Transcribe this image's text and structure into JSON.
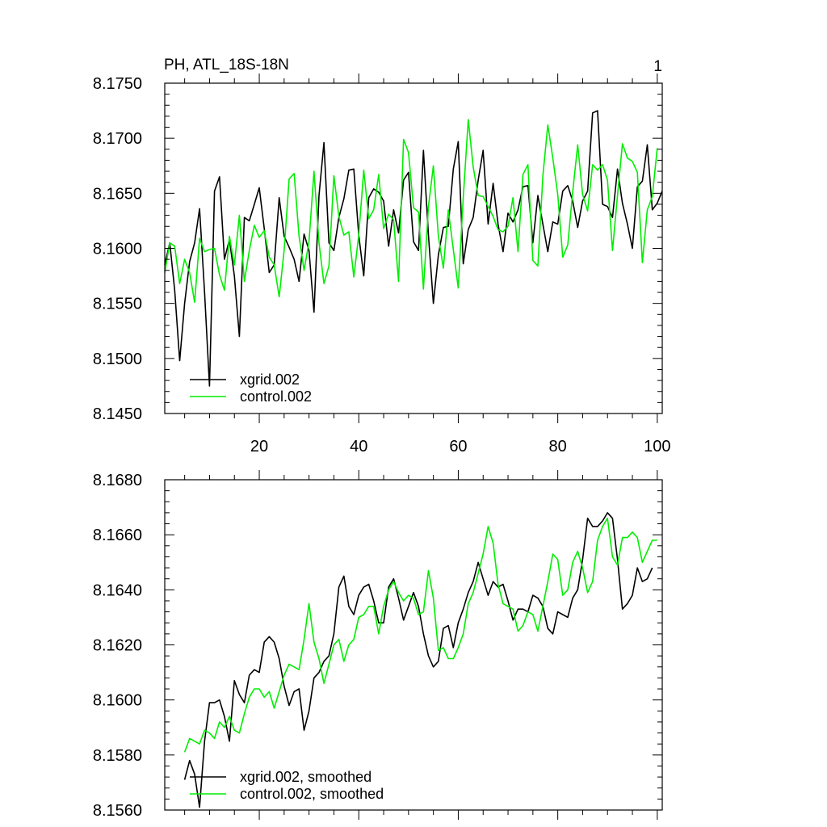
{
  "chart_data": [
    {
      "type": "line",
      "title": "PH, ATL_18S-18N",
      "corner_label": "1",
      "xlim": [
        1,
        101
      ],
      "ylim": [
        8.145,
        8.175
      ],
      "xticks": [
        20,
        40,
        60,
        80,
        100
      ],
      "xtick_labels": [
        "20",
        "40",
        "60",
        "80",
        "100"
      ],
      "yticks": [
        8.145,
        8.15,
        8.155,
        8.16,
        8.165,
        8.17,
        8.175
      ],
      "ytick_labels": [
        "8.1450",
        "8.1500",
        "8.1550",
        "8.1600",
        "8.1650",
        "8.1700",
        "8.1750"
      ],
      "legend_position": "bottom-left",
      "series": [
        {
          "name": "xgrid.002",
          "color": "#000000",
          "values": [
            8.1585,
            8.1605,
            8.1562,
            8.1498,
            8.155,
            8.1588,
            8.1605,
            8.1636,
            8.156,
            8.1475,
            8.1652,
            8.1665,
            8.159,
            8.1608,
            8.1575,
            8.152,
            8.1628,
            8.1625,
            8.164,
            8.1655,
            8.1618,
            8.1578,
            8.1585,
            8.1646,
            8.1611,
            8.1601,
            8.159,
            8.157,
            8.1613,
            8.1598,
            8.1542,
            8.1648,
            8.1696,
            8.1605,
            8.1598,
            8.1628,
            8.1645,
            8.1671,
            8.1672,
            8.1612,
            8.1575,
            8.1646,
            8.1654,
            8.1651,
            8.1643,
            8.1602,
            8.1635,
            8.1614,
            8.1662,
            8.1669,
            8.1606,
            8.1598,
            8.1689,
            8.1612,
            8.155,
            8.1594,
            8.1619,
            8.162,
            8.1672,
            8.1697,
            8.1586,
            8.1617,
            8.1628,
            8.1662,
            8.1689,
            8.1622,
            8.1659,
            8.1622,
            8.1597,
            8.1632,
            8.1624,
            8.1635,
            8.1656,
            8.1657,
            8.1605,
            8.1648,
            8.1622,
            8.1597,
            8.1624,
            8.1622,
            8.1652,
            8.1657,
            8.1643,
            8.1619,
            8.1643,
            8.1652,
            8.1723,
            8.1725,
            8.164,
            8.1638,
            8.1628,
            8.1672,
            8.1641,
            8.1622,
            8.16,
            8.1656,
            8.1661,
            8.1694,
            8.1635,
            8.1641,
            8.1652
          ]
        },
        {
          "name": "control.002",
          "color": "#00ee00",
          "values": [
            8.1578,
            8.1605,
            8.1602,
            8.1568,
            8.159,
            8.1578,
            8.1551,
            8.1609,
            8.1597,
            8.1599,
            8.16,
            8.1576,
            8.1562,
            8.1611,
            8.1585,
            8.163,
            8.157,
            8.1598,
            8.1621,
            8.161,
            8.1616,
            8.1592,
            8.1585,
            8.1556,
            8.1598,
            8.1663,
            8.1668,
            8.1611,
            8.158,
            8.1606,
            8.167,
            8.1605,
            8.1568,
            8.1584,
            8.1666,
            8.1629,
            8.1612,
            8.1615,
            8.1574,
            8.1612,
            8.1671,
            8.1627,
            8.1635,
            8.1667,
            8.1618,
            8.1631,
            8.1626,
            8.157,
            8.1699,
            8.1687,
            8.1637,
            8.1633,
            8.1563,
            8.1638,
            8.1675,
            8.1611,
            8.1582,
            8.1635,
            8.1599,
            8.1564,
            8.1646,
            8.1717,
            8.1674,
            8.1648,
            8.1647,
            8.1638,
            8.1629,
            8.1617,
            8.1615,
            8.162,
            8.1646,
            8.1597,
            8.1667,
            8.1676,
            8.1589,
            8.1584,
            8.1666,
            8.1712,
            8.1682,
            8.1649,
            8.1592,
            8.1603,
            8.1651,
            8.1694,
            8.1649,
            8.1634,
            8.1676,
            8.1671,
            8.1676,
            8.1662,
            8.1598,
            8.1648,
            8.1695,
            8.1682,
            8.1679,
            8.1669,
            8.1587,
            8.1635,
            8.1647,
            8.1691
          ]
        }
      ]
    },
    {
      "type": "line",
      "xlim": [
        1,
        101
      ],
      "ylim": [
        8.156,
        8.168
      ],
      "xticks": [
        20,
        40,
        60,
        80,
        100
      ],
      "yticks": [
        8.156,
        8.158,
        8.16,
        8.162,
        8.164,
        8.166,
        8.168
      ],
      "ytick_labels": [
        "8.1560",
        "8.1580",
        "8.1600",
        "8.1620",
        "8.1640",
        "8.1660",
        "8.1680"
      ],
      "legend_position": "bottom-left",
      "series": [
        {
          "name": "xgrid.002, smoothed",
          "color": "#000000",
          "x_start": 5,
          "values": [
            8.1571,
            8.1578,
            8.1573,
            8.1561,
            8.1585,
            8.1599,
            8.1599,
            8.16,
            8.1594,
            8.1585,
            8.1607,
            8.1602,
            8.1599,
            8.1609,
            8.1611,
            8.161,
            8.1621,
            8.1623,
            8.1621,
            8.1615,
            8.1605,
            8.1598,
            8.1603,
            8.1604,
            8.1589,
            8.1596,
            8.1608,
            8.161,
            8.1614,
            8.1616,
            8.1624,
            8.1641,
            8.1645,
            8.1634,
            8.1631,
            8.1638,
            8.1641,
            8.1642,
            8.1636,
            8.1628,
            8.1628,
            8.1641,
            8.1644,
            8.1637,
            8.1629,
            8.1634,
            8.1639,
            8.1634,
            8.1624,
            8.1616,
            8.1612,
            8.1614,
            8.1626,
            8.1627,
            8.1619,
            8.1628,
            8.1633,
            8.1639,
            8.1643,
            8.165,
            8.1644,
            8.1638,
            8.1643,
            8.1641,
            8.1642,
            8.1636,
            8.1629,
            8.1633,
            8.1633,
            8.1632,
            8.1638,
            8.1637,
            8.1634,
            8.1626,
            8.1624,
            8.1632,
            8.1631,
            8.163,
            8.1637,
            8.164,
            8.1651,
            8.1666,
            8.1663,
            8.1663,
            8.1665,
            8.1668,
            8.1666,
            8.1651,
            8.1633,
            8.1635,
            8.1638,
            8.1648,
            8.1643,
            8.1644,
            8.1648
          ]
        },
        {
          "name": "control.002, smoothed",
          "color": "#00ee00",
          "x_start": 5,
          "values": [
            8.1581,
            8.1586,
            8.1585,
            8.1584,
            8.1589,
            8.1588,
            8.1586,
            8.1592,
            8.159,
            8.1594,
            8.1589,
            8.1588,
            8.1595,
            8.1601,
            8.1604,
            8.1604,
            8.1601,
            8.1603,
            8.1597,
            8.1603,
            8.1609,
            8.1613,
            8.1612,
            8.1611,
            8.1622,
            8.1635,
            8.1621,
            8.1615,
            8.1606,
            8.1613,
            8.162,
            8.1622,
            8.1614,
            8.162,
            8.1622,
            8.163,
            8.1631,
            8.1634,
            8.1634,
            8.1624,
            8.1634,
            8.164,
            8.1643,
            8.1639,
            8.1636,
            8.1638,
            8.1637,
            8.1631,
            8.1632,
            8.1647,
            8.1637,
            8.1618,
            8.1619,
            8.1615,
            8.1615,
            8.1619,
            8.1624,
            8.1635,
            8.1639,
            8.1646,
            8.1653,
            8.1663,
            8.1657,
            8.1642,
            8.1635,
            8.1634,
            8.1633,
            8.1625,
            8.1627,
            8.1632,
            8.1631,
            8.1625,
            8.1634,
            8.1643,
            8.1653,
            8.1651,
            8.1638,
            8.164,
            8.165,
            8.1654,
            8.1648,
            8.1639,
            8.1643,
            8.1658,
            8.1663,
            8.1666,
            8.1652,
            8.1649,
            8.1659,
            8.1659,
            8.1661,
            8.1659,
            8.165,
            8.1654,
            8.1658,
            8.1658
          ]
        }
      ]
    }
  ]
}
